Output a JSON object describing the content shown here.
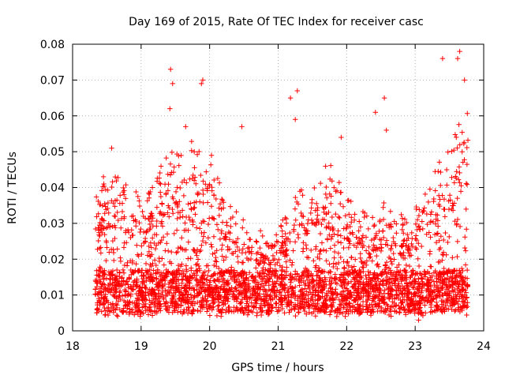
{
  "chart_data": {
    "type": "scatter",
    "title": "Day 169 of 2015, Rate Of TEC Index for receiver casc",
    "xlabel": "GPS time / hours",
    "ylabel": "ROTI / TECUs",
    "xlim": [
      18,
      24
    ],
    "ylim": [
      0,
      0.08
    ],
    "grid": true,
    "marker": "+",
    "x_ticks": [
      18,
      19,
      20,
      21,
      22,
      23,
      24
    ],
    "x_tick_labels": [
      "18",
      "19",
      "20",
      "21",
      "22",
      "23",
      "24"
    ],
    "y_ticks": [
      0,
      0.01,
      0.02,
      0.03,
      0.04,
      0.05,
      0.06,
      0.07,
      0.08
    ],
    "y_tick_labels": [
      "0",
      "0.01",
      "0.02",
      "0.03",
      "0.04",
      "0.05",
      "0.06",
      "0.07",
      "0.08"
    ],
    "series": [
      {
        "name": "ROTI",
        "color": "#ff0000",
        "x_range": [
          18.33,
          23.77
        ],
        "note": "dense point cloud, approx. 4000 points; values estimated",
        "notable_points": [
          {
            "x": 18.57,
            "y": 0.051
          },
          {
            "x": 18.45,
            "y": 0.043
          },
          {
            "x": 19.43,
            "y": 0.073
          },
          {
            "x": 19.46,
            "y": 0.069
          },
          {
            "x": 19.42,
            "y": 0.062
          },
          {
            "x": 19.65,
            "y": 0.057
          },
          {
            "x": 19.9,
            "y": 0.07
          },
          {
            "x": 19.88,
            "y": 0.069
          },
          {
            "x": 20.47,
            "y": 0.057
          },
          {
            "x": 21.18,
            "y": 0.065
          },
          {
            "x": 21.28,
            "y": 0.067
          },
          {
            "x": 21.25,
            "y": 0.059
          },
          {
            "x": 21.92,
            "y": 0.054
          },
          {
            "x": 22.42,
            "y": 0.061
          },
          {
            "x": 22.55,
            "y": 0.065
          },
          {
            "x": 22.58,
            "y": 0.056
          },
          {
            "x": 23.4,
            "y": 0.076
          },
          {
            "x": 23.65,
            "y": 0.078
          },
          {
            "x": 23.62,
            "y": 0.076
          },
          {
            "x": 23.72,
            "y": 0.07
          },
          {
            "x": 23.05,
            "y": 0.003
          }
        ]
      }
    ]
  }
}
